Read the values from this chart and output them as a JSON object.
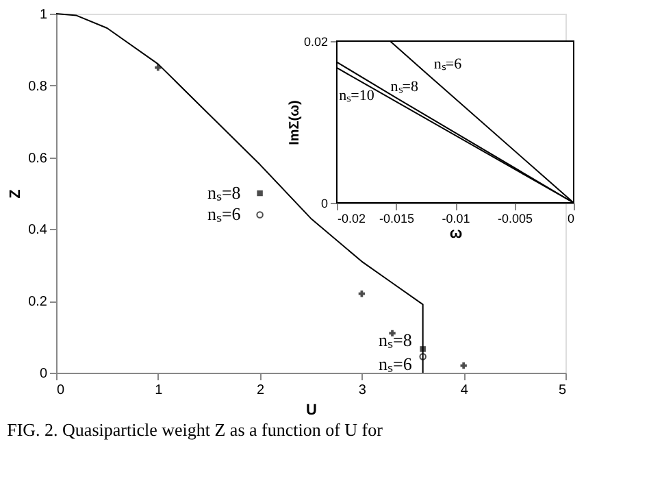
{
  "chart_data": [
    {
      "type": "line",
      "xlabel": "U",
      "ylabel": "Z",
      "xlim": [
        0,
        5
      ],
      "ylim": [
        0,
        1
      ],
      "xticks": [
        0,
        1,
        2,
        3,
        4,
        5
      ],
      "yticks": [
        0,
        0.2,
        0.4,
        0.6,
        0.8,
        1
      ],
      "grid": false,
      "series": [
        {
          "type": "line",
          "color": "#000000",
          "marker": "none",
          "x": [
            0,
            0.2,
            0.5,
            1,
            1.5,
            2,
            2.5,
            3,
            3.3,
            3.6,
            3.6
          ],
          "values": [
            1,
            0.995,
            0.96,
            0.86,
            0.72,
            0.58,
            0.43,
            0.31,
            0.25,
            0.19,
            0
          ]
        },
        {
          "type": "scatter",
          "color": "#000000",
          "marker": "cross",
          "x": [
            1,
            3,
            3.3,
            4
          ],
          "values": [
            0.85,
            0.22,
            0.11,
            0.02
          ]
        },
        {
          "type": "scatter",
          "name": "nₛ=8",
          "color": "#000000",
          "marker": "square",
          "x": [
            2,
            3.6
          ],
          "values": [
            0.5,
            0.066
          ]
        },
        {
          "type": "scatter",
          "name": "nₛ=6",
          "color": "#000000",
          "marker": "circle",
          "x": [
            2,
            3.6
          ],
          "values": [
            0.44,
            0.045
          ]
        }
      ],
      "annotations": [
        {
          "text": "nₛ=8",
          "x": 3.6,
          "y": 0.066
        },
        {
          "text": "nₛ=6",
          "x": 3.6,
          "y": 0.045
        },
        "FIG. 2. Quasiparticle weight Z as a function of U for"
      ]
    },
    {
      "type": "line",
      "xlabel": "ω",
      "ylabel": "ImΣ(ω)",
      "xlim": [
        -0.02,
        0
      ],
      "ylim": [
        0,
        0.02
      ],
      "xticks": [
        -0.02,
        -0.015,
        -0.01,
        -0.005,
        0
      ],
      "yticks": [
        0,
        0.02
      ],
      "grid": false,
      "series": [
        {
          "name": "nₛ=6",
          "color": "#000000",
          "x": [
            -0.0155,
            -0.0125,
            0
          ],
          "values": [
            0.02,
            0.0161,
            0
          ]
        },
        {
          "name": "nₛ=8",
          "color": "#000000",
          "x": [
            -0.02,
            -0.015,
            0
          ],
          "values": [
            0.0174,
            0.013,
            0
          ]
        },
        {
          "name": "nₛ=10",
          "color": "#000000",
          "x": [
            -0.02,
            -0.0175,
            0
          ],
          "values": [
            0.0167,
            0.0146,
            0
          ]
        }
      ]
    }
  ]
}
